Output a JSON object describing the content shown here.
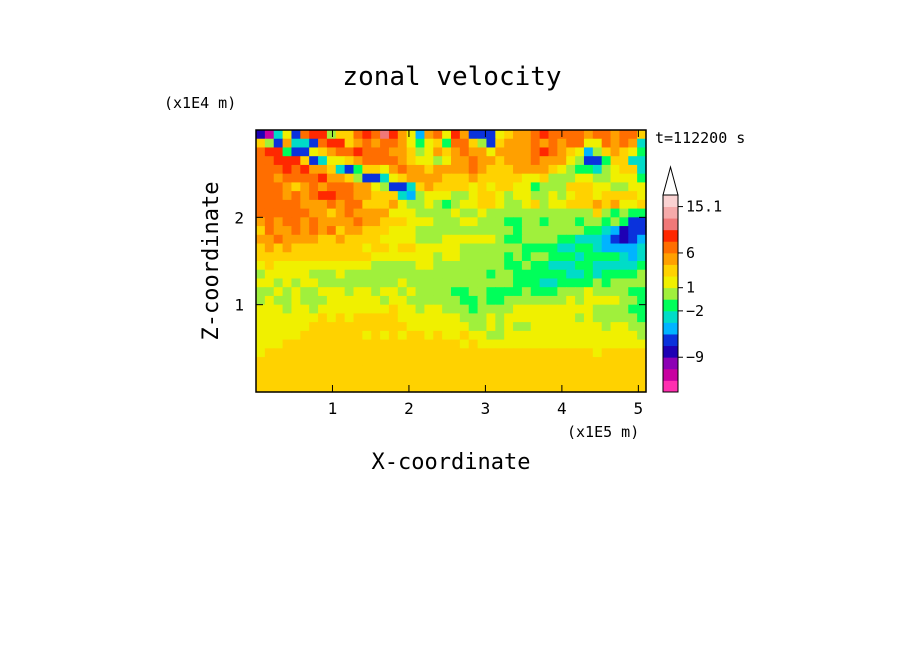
{
  "chart_data": {
    "type": "heatmap",
    "title": "zonal velocity",
    "xlabel": "X-coordinate",
    "ylabel": "Z-coordinate",
    "x_unit": "(x1E5 m)",
    "y_unit": "(x1E4 m)",
    "time_label": "t=112200 s",
    "xlim": [
      0,
      5.1
    ],
    "ylim": [
      0,
      3.0
    ],
    "x_ticks": [
      "1",
      "2",
      "3",
      "4",
      "5"
    ],
    "x_tick_values": [
      1,
      2,
      3,
      4,
      5
    ],
    "y_ticks": [
      "1",
      "2"
    ],
    "y_tick_values": [
      1,
      2
    ],
    "colorbar": {
      "labels": [
        "15.1",
        "6",
        "1",
        "-2",
        "-9"
      ],
      "colors": [
        "#ff2fb0",
        "#c800a0",
        "#8c00b4",
        "#1e00b4",
        "#0a32dc",
        "#00b4ff",
        "#00dcc8",
        "#00ff5a",
        "#a0f03c",
        "#f0f000",
        "#ffd200",
        "#ffa000",
        "#ff6e00",
        "#ff2800",
        "#f07878",
        "#f5aaaa",
        "#fad2d2"
      ]
    },
    "z_grid": [
      [
        3,
        1,
        6,
        9,
        4,
        12,
        13,
        13,
        8,
        10,
        10,
        12,
        13,
        12,
        14,
        13,
        11,
        9,
        5,
        11,
        12,
        9,
        13,
        11,
        4,
        4,
        4,
        9,
        10,
        11,
        11,
        12,
        13,
        12,
        12,
        12,
        12,
        11,
        12,
        12,
        11,
        12,
        12,
        10
      ],
      [
        10,
        8,
        4,
        11,
        6,
        6,
        4,
        12,
        13,
        13,
        10,
        11,
        12,
        11,
        12,
        12,
        11,
        9,
        7,
        9,
        10,
        7,
        12,
        12,
        10,
        8,
        4,
        10,
        11,
        11,
        11,
        12,
        11,
        12,
        11,
        12,
        12,
        9,
        9,
        12,
        11,
        12,
        11,
        6
      ],
      [
        12,
        13,
        13,
        7,
        4,
        4,
        9,
        10,
        11,
        12,
        12,
        13,
        12,
        12,
        12,
        11,
        11,
        10,
        8,
        9,
        11,
        10,
        11,
        12,
        11,
        11,
        9,
        11,
        11,
        11,
        11,
        12,
        13,
        12,
        11,
        10,
        9,
        5,
        8,
        10,
        11,
        10,
        9,
        7
      ],
      [
        12,
        12,
        13,
        13,
        13,
        10,
        4,
        6,
        9,
        9,
        10,
        11,
        12,
        12,
        12,
        12,
        11,
        10,
        9,
        9,
        8,
        9,
        11,
        11,
        12,
        11,
        11,
        10,
        11,
        11,
        11,
        12,
        11,
        11,
        11,
        9,
        8,
        4,
        4,
        7,
        10,
        10,
        6,
        6
      ],
      [
        12,
        12,
        12,
        13,
        12,
        13,
        11,
        11,
        10,
        6,
        4,
        7,
        10,
        10,
        9,
        11,
        12,
        11,
        11,
        10,
        11,
        11,
        11,
        11,
        12,
        11,
        10,
        10,
        10,
        11,
        11,
        11,
        11,
        10,
        9,
        8,
        7,
        7,
        6,
        8,
        9,
        10,
        10,
        6
      ],
      [
        12,
        12,
        11,
        12,
        12,
        12,
        12,
        13,
        11,
        11,
        10,
        8,
        4,
        4,
        6,
        9,
        10,
        11,
        11,
        11,
        11,
        10,
        10,
        10,
        11,
        10,
        10,
        10,
        10,
        10,
        9,
        9,
        10,
        8,
        8,
        8,
        9,
        9,
        8,
        8,
        9,
        9,
        9,
        7
      ],
      [
        12,
        12,
        12,
        11,
        10,
        11,
        12,
        11,
        12,
        12,
        12,
        11,
        11,
        9,
        8,
        4,
        4,
        6,
        10,
        11,
        10,
        10,
        10,
        10,
        9,
        10,
        9,
        10,
        10,
        9,
        9,
        7,
        8,
        8,
        8,
        10,
        10,
        10,
        9,
        9,
        8,
        8,
        9,
        9
      ],
      [
        12,
        12,
        12,
        11,
        12,
        11,
        12,
        13,
        13,
        12,
        12,
        11,
        11,
        10,
        10,
        10,
        6,
        5,
        8,
        9,
        9,
        9,
        8,
        8,
        9,
        10,
        10,
        9,
        8,
        9,
        9,
        8,
        8,
        9,
        8,
        9,
        10,
        10,
        9,
        10,
        10,
        10,
        10,
        9
      ],
      [
        12,
        12,
        12,
        12,
        12,
        11,
        11,
        11,
        12,
        11,
        12,
        12,
        10,
        10,
        10,
        11,
        9,
        8,
        8,
        9,
        8,
        7,
        8,
        9,
        9,
        10,
        10,
        9,
        8,
        8,
        9,
        10,
        8,
        9,
        9,
        10,
        10,
        10,
        11,
        10,
        11,
        9,
        9,
        10
      ],
      [
        12,
        12,
        12,
        12,
        12,
        12,
        11,
        11,
        10,
        11,
        12,
        11,
        11,
        11,
        11,
        9,
        9,
        9,
        8,
        8,
        8,
        8,
        9,
        8,
        8,
        9,
        8,
        8,
        8,
        8,
        8,
        8,
        8,
        8,
        8,
        8,
        8,
        8,
        10,
        8,
        7,
        8,
        7,
        7
      ],
      [
        11,
        12,
        11,
        12,
        12,
        11,
        12,
        11,
        11,
        11,
        11,
        12,
        11,
        11,
        10,
        10,
        10,
        9,
        9,
        9,
        8,
        8,
        8,
        9,
        9,
        8,
        8,
        8,
        7,
        7,
        8,
        8,
        7,
        8,
        8,
        8,
        7,
        8,
        8,
        7,
        8,
        7,
        4,
        4
      ],
      [
        10,
        12,
        11,
        11,
        12,
        11,
        12,
        11,
        12,
        10,
        11,
        11,
        10,
        10,
        10,
        9,
        9,
        9,
        8,
        8,
        8,
        8,
        8,
        8,
        8,
        8,
        8,
        8,
        8,
        7,
        8,
        8,
        8,
        8,
        8,
        8,
        8,
        7,
        7,
        6,
        5,
        3,
        4,
        4
      ],
      [
        11,
        11,
        12,
        11,
        11,
        11,
        11,
        10,
        10,
        11,
        10,
        10,
        10,
        10,
        9,
        9,
        9,
        9,
        8,
        8,
        8,
        9,
        9,
        9,
        9,
        9,
        9,
        8,
        7,
        7,
        8,
        8,
        8,
        8,
        7,
        7,
        6,
        6,
        6,
        5,
        4,
        3,
        4,
        5
      ],
      [
        10,
        11,
        10,
        11,
        10,
        10,
        10,
        10,
        10,
        10,
        10,
        10,
        9,
        10,
        10,
        9,
        10,
        10,
        9,
        9,
        9,
        9,
        9,
        8,
        8,
        8,
        8,
        8,
        8,
        8,
        7,
        7,
        7,
        7,
        6,
        6,
        7,
        7,
        6,
        5,
        5,
        5,
        5,
        6
      ],
      [
        10,
        10,
        10,
        10,
        10,
        10,
        10,
        10,
        10,
        10,
        10,
        10,
        10,
        9,
        9,
        9,
        9,
        9,
        9,
        9,
        8,
        9,
        9,
        8,
        8,
        8,
        8,
        8,
        7,
        8,
        7,
        8,
        8,
        7,
        7,
        7,
        6,
        7,
        7,
        7,
        7,
        6,
        5,
        6
      ],
      [
        9,
        10,
        9,
        9,
        9,
        9,
        9,
        9,
        9,
        9,
        9,
        9,
        9,
        8,
        8,
        8,
        8,
        8,
        9,
        9,
        8,
        8,
        8,
        8,
        8,
        8,
        8,
        8,
        7,
        7,
        8,
        7,
        7,
        6,
        6,
        6,
        7,
        7,
        6,
        6,
        6,
        6,
        6,
        7
      ],
      [
        8,
        9,
        9,
        9,
        9,
        9,
        8,
        8,
        8,
        9,
        8,
        8,
        8,
        8,
        8,
        8,
        8,
        8,
        8,
        8,
        8,
        8,
        8,
        8,
        8,
        8,
        7,
        8,
        8,
        7,
        7,
        7,
        7,
        7,
        7,
        6,
        6,
        7,
        6,
        7,
        7,
        7,
        7,
        8
      ],
      [
        9,
        9,
        8,
        9,
        8,
        9,
        9,
        8,
        8,
        8,
        8,
        8,
        8,
        8,
        8,
        8,
        9,
        8,
        8,
        8,
        8,
        8,
        8,
        8,
        8,
        8,
        8,
        8,
        8,
        7,
        7,
        7,
        6,
        6,
        7,
        7,
        7,
        7,
        8,
        7,
        8,
        8,
        8,
        8
      ],
      [
        8,
        8,
        9,
        8,
        9,
        8,
        8,
        9,
        9,
        9,
        8,
        9,
        9,
        8,
        9,
        9,
        8,
        9,
        8,
        8,
        8,
        8,
        7,
        7,
        8,
        8,
        7,
        7,
        7,
        7,
        8,
        7,
        7,
        7,
        8,
        8,
        8,
        9,
        8,
        8,
        8,
        8,
        7,
        7
      ],
      [
        8,
        9,
        8,
        8,
        9,
        8,
        8,
        8,
        9,
        9,
        9,
        9,
        9,
        9,
        8,
        9,
        9,
        8,
        8,
        8,
        8,
        8,
        8,
        7,
        7,
        8,
        7,
        7,
        8,
        8,
        8,
        8,
        8,
        8,
        8,
        9,
        8,
        9,
        9,
        9,
        9,
        8,
        8,
        7
      ],
      [
        9,
        9,
        9,
        8,
        9,
        9,
        8,
        9,
        9,
        9,
        9,
        9,
        9,
        9,
        9,
        10,
        9,
        9,
        8,
        9,
        9,
        8,
        8,
        8,
        7,
        8,
        8,
        8,
        8,
        9,
        9,
        9,
        9,
        9,
        9,
        9,
        9,
        9,
        8,
        8,
        8,
        8,
        7,
        7
      ],
      [
        9,
        9,
        9,
        9,
        9,
        9,
        9,
        10,
        9,
        10,
        9,
        10,
        10,
        10,
        10,
        10,
        9,
        9,
        9,
        9,
        9,
        9,
        9,
        8,
        8,
        8,
        9,
        8,
        9,
        9,
        9,
        9,
        9,
        9,
        9,
        9,
        8,
        9,
        8,
        8,
        8,
        8,
        8,
        7
      ],
      [
        9,
        9,
        9,
        9,
        9,
        9,
        10,
        10,
        10,
        10,
        10,
        10,
        10,
        10,
        10,
        10,
        10,
        9,
        9,
        9,
        9,
        9,
        9,
        9,
        8,
        8,
        9,
        8,
        9,
        8,
        8,
        9,
        9,
        9,
        9,
        9,
        9,
        9,
        9,
        8,
        9,
        9,
        8,
        8
      ],
      [
        9,
        9,
        9,
        9,
        9,
        10,
        10,
        10,
        10,
        10,
        10,
        10,
        9,
        10,
        9,
        10,
        9,
        10,
        10,
        9,
        10,
        9,
        9,
        10,
        9,
        9,
        8,
        8,
        9,
        9,
        9,
        9,
        9,
        9,
        9,
        9,
        9,
        9,
        9,
        9,
        9,
        9,
        9,
        8
      ],
      [
        9,
        9,
        9,
        10,
        10,
        10,
        10,
        10,
        10,
        10,
        10,
        10,
        10,
        10,
        10,
        10,
        10,
        10,
        10,
        10,
        10,
        10,
        10,
        9,
        10,
        9,
        9,
        9,
        9,
        9,
        9,
        9,
        9,
        9,
        9,
        9,
        9,
        9,
        9,
        9,
        9,
        9,
        9,
        9
      ],
      [
        9,
        10,
        10,
        10,
        10,
        10,
        10,
        10,
        10,
        10,
        10,
        10,
        10,
        10,
        10,
        10,
        10,
        10,
        10,
        10,
        10,
        10,
        10,
        10,
        10,
        10,
        10,
        10,
        10,
        10,
        10,
        10,
        10,
        10,
        10,
        10,
        10,
        10,
        9,
        10,
        10,
        10,
        10,
        10
      ],
      [
        10,
        10,
        10,
        10,
        10,
        10,
        10,
        10,
        10,
        10,
        10,
        10,
        10,
        10,
        10,
        10,
        10,
        10,
        10,
        10,
        10,
        10,
        10,
        10,
        10,
        10,
        10,
        10,
        10,
        10,
        10,
        10,
        10,
        10,
        10,
        10,
        10,
        10,
        10,
        10,
        10,
        10,
        10,
        10
      ],
      [
        10,
        10,
        10,
        10,
        10,
        10,
        10,
        10,
        10,
        10,
        10,
        10,
        10,
        10,
        10,
        10,
        10,
        10,
        10,
        10,
        10,
        10,
        10,
        10,
        10,
        10,
        10,
        10,
        10,
        10,
        10,
        10,
        10,
        10,
        10,
        10,
        10,
        10,
        10,
        10,
        10,
        10,
        10,
        10
      ],
      [
        10,
        10,
        10,
        10,
        10,
        10,
        10,
        10,
        10,
        10,
        10,
        10,
        10,
        10,
        10,
        10,
        10,
        10,
        10,
        10,
        10,
        10,
        10,
        10,
        10,
        10,
        10,
        10,
        10,
        10,
        10,
        10,
        10,
        10,
        10,
        10,
        10,
        10,
        10,
        10,
        10,
        10,
        10,
        10
      ],
      [
        10,
        10,
        10,
        10,
        10,
        10,
        10,
        10,
        10,
        10,
        10,
        10,
        10,
        10,
        10,
        10,
        10,
        10,
        10,
        10,
        10,
        10,
        10,
        10,
        10,
        10,
        10,
        10,
        10,
        10,
        10,
        10,
        10,
        10,
        10,
        10,
        10,
        10,
        10,
        10,
        10,
        10,
        10,
        10
      ]
    ]
  }
}
